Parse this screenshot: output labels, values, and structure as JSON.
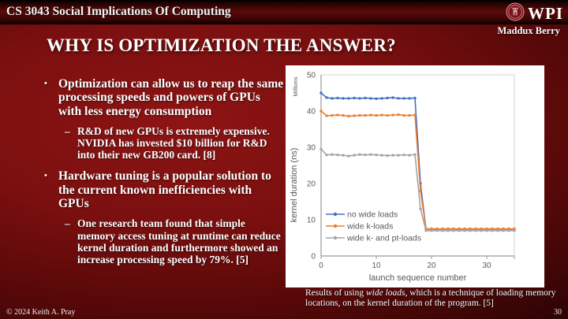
{
  "header": {
    "course": "CS 3043 Social Implications Of Computing",
    "wpi_wordmark": "WPI",
    "author": "Maddux Berry"
  },
  "slide": {
    "title": "WHY IS OPTIMIZATION THE ANSWER?",
    "footer_copyright": "© 2024 Keith A. Pray",
    "page_number": "30"
  },
  "bullets": [
    {
      "marker": "•",
      "text": "Optimization can allow us to reap the same processing speeds and powers of GPUs with less energy consumption"
    },
    {
      "marker": "–",
      "text": "R&D of new GPUs is extremely expensive. NVIDIA has invested $10 billion for R&D into their new GB200 card. [8]"
    },
    {
      "marker": "•",
      "text": "Hardware tuning is a popular solution to the current known inefficiencies with GPUs"
    },
    {
      "marker": "–",
      "text": "One research team found that simple memory access tuning at runtime can reduce kernel duration and furthermore showed an increase processing speed by 79%. [5]"
    }
  ],
  "caption": {
    "prefix": "Results of using ",
    "italic": "wide loads",
    "suffix": ", which is a technique of loading memory locations, on the kernel duration of the program. [5]"
  },
  "colors": {
    "slide_red": "#8e1414",
    "series_blue": "#4472C4",
    "series_orange": "#ED7D31",
    "series_gray": "#A5A5A5",
    "chart_text": "#595959"
  },
  "chart_data": {
    "type": "line",
    "title": "",
    "xlabel": "launch sequence number",
    "ylabel": "kernel duration (ns)",
    "ylabel_units": "Millions",
    "xlim": [
      0,
      35
    ],
    "ylim": [
      0,
      50
    ],
    "x_ticks": [
      0,
      10,
      20,
      30
    ],
    "y_ticks": [
      0,
      10,
      20,
      30,
      40,
      50
    ],
    "grid": false,
    "legend_position": "inside-lower-left",
    "x": [
      0,
      1,
      2,
      3,
      4,
      5,
      6,
      7,
      8,
      9,
      10,
      11,
      12,
      13,
      14,
      15,
      16,
      17,
      18,
      19,
      20,
      21,
      22,
      23,
      24,
      25,
      26,
      27,
      28,
      29,
      30,
      31,
      32,
      33,
      34,
      35
    ],
    "series": [
      {
        "name": "no wide loads",
        "color": "#4472C4",
        "values": [
          45,
          43.7,
          43.5,
          43.6,
          43.5,
          43.5,
          43.6,
          43.5,
          43.6,
          43.5,
          43.4,
          43.5,
          43.6,
          43.7,
          43.5,
          43.5,
          43.5,
          43.6,
          20,
          7.4,
          7.4,
          7.4,
          7.4,
          7.4,
          7.4,
          7.4,
          7.4,
          7.4,
          7.4,
          7.4,
          7.4,
          7.4,
          7.4,
          7.4,
          7.4,
          7.4
        ]
      },
      {
        "name": "wide k-loads",
        "color": "#ED7D31",
        "values": [
          40,
          38.7,
          38.8,
          38.9,
          38.8,
          38.6,
          38.7,
          38.8,
          38.8,
          38.9,
          38.8,
          38.9,
          38.8,
          38.9,
          39,
          38.8,
          38.8,
          38.9,
          18,
          7.5,
          7.5,
          7.5,
          7.5,
          7.5,
          7.5,
          7.5,
          7.5,
          7.5,
          7.5,
          7.5,
          7.5,
          7.5,
          7.5,
          7.5,
          7.5,
          7.5
        ]
      },
      {
        "name": "wide k- and pt-loads",
        "color": "#A5A5A5",
        "values": [
          29.5,
          27.9,
          28,
          27.9,
          27.8,
          27.6,
          27.8,
          28,
          27.9,
          28,
          27.9,
          27.8,
          27.7,
          27.8,
          27.8,
          27.9,
          27.8,
          28,
          13,
          7,
          7,
          7,
          7,
          7,
          7,
          7,
          7,
          7,
          7,
          7,
          7,
          7,
          7,
          7,
          7,
          7
        ]
      }
    ]
  }
}
